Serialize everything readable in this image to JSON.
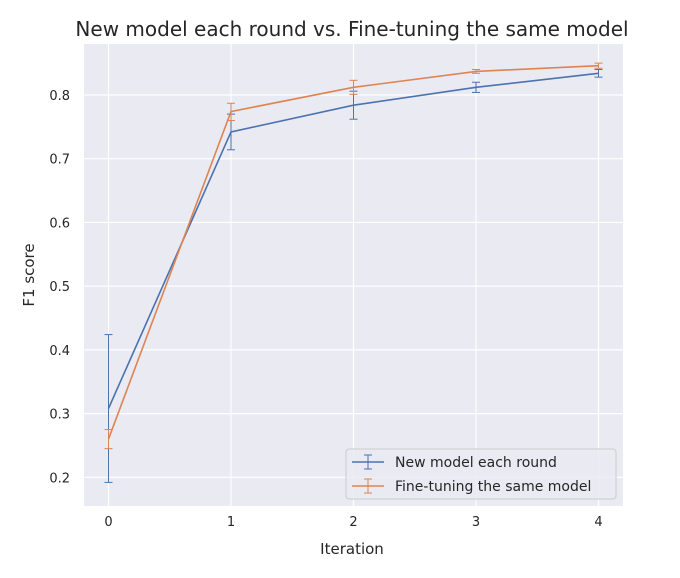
{
  "chart_data": {
    "type": "line",
    "title": "New model each round vs. Fine-tuning the same model",
    "xlabel": "Iteration",
    "ylabel": "F1 score",
    "x": [
      0,
      1,
      2,
      3,
      4
    ],
    "xlim": [
      -0.2,
      4.2
    ],
    "ylim": [
      0.155,
      0.88
    ],
    "xticks": [
      "0",
      "1",
      "2",
      "3",
      "4"
    ],
    "yticks": [
      "0.2",
      "0.3",
      "0.4",
      "0.5",
      "0.6",
      "0.7",
      "0.8"
    ],
    "grid": true,
    "legend_position": "lower-right",
    "series": [
      {
        "name": "New model each round",
        "color": "#4c72b0",
        "values": [
          0.308,
          0.742,
          0.784,
          0.812,
          0.834
        ],
        "err_low": [
          0.192,
          0.714,
          0.762,
          0.804,
          0.828
        ],
        "err_high": [
          0.424,
          0.77,
          0.806,
          0.82,
          0.84
        ]
      },
      {
        "name": "Fine-tuning the same model",
        "color": "#dd8452",
        "values": [
          0.26,
          0.774,
          0.812,
          0.837,
          0.846
        ],
        "err_low": [
          0.245,
          0.76,
          0.801,
          0.834,
          0.842
        ],
        "err_high": [
          0.275,
          0.787,
          0.823,
          0.84,
          0.85
        ]
      }
    ]
  }
}
